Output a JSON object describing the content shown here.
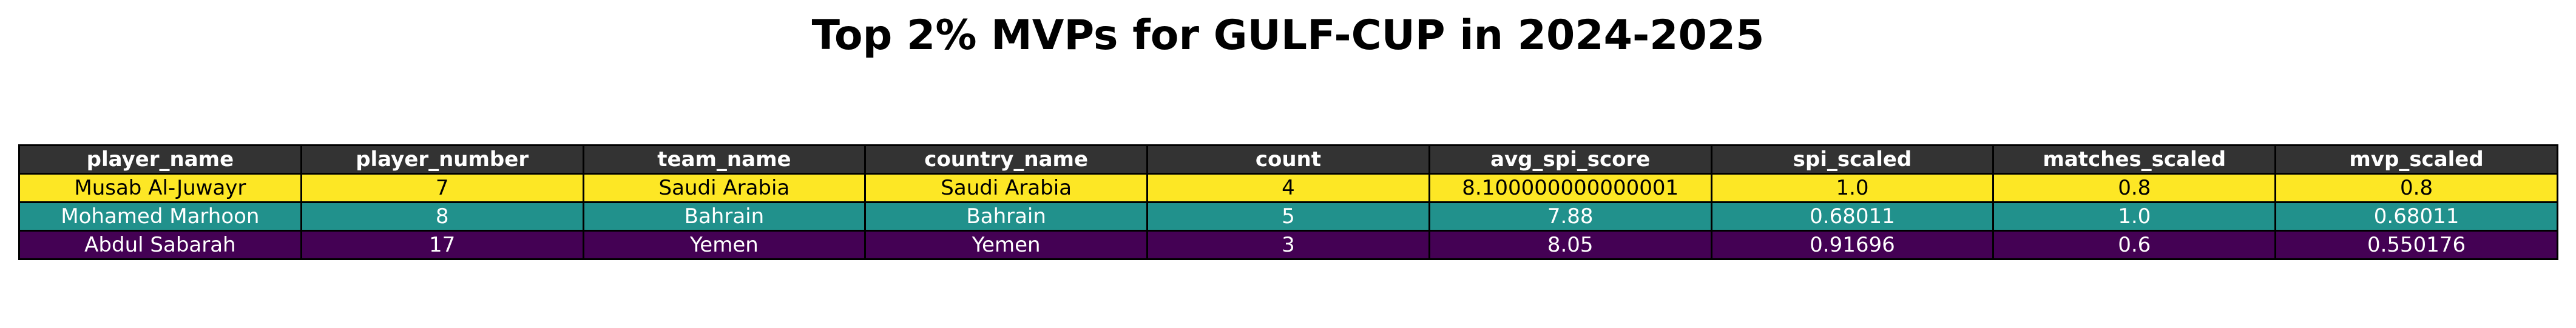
{
  "chart_data": {
    "type": "table",
    "title": "Top 2% MVPs for GULF-CUP in 2024-2025",
    "columns": [
      "player_name",
      "player_number",
      "team_name",
      "country_name",
      "count",
      "avg_spi_score",
      "spi_scaled",
      "matches_scaled",
      "mvp_scaled"
    ],
    "rows": [
      [
        "Musab Al-Juwayr",
        "7",
        "Saudi Arabia",
        "Saudi Arabia",
        "4",
        "8.100000000000001",
        "1.0",
        "0.8",
        "0.8"
      ],
      [
        "Mohamed Marhoon",
        "8",
        "Bahrain",
        "Bahrain",
        "5",
        "7.88",
        "0.68011",
        "1.0",
        "0.68011"
      ],
      [
        "Abdul Sabarah",
        "17",
        "Yemen",
        "Yemen",
        "3",
        "8.05",
        "0.91696",
        "0.6",
        "0.550176"
      ]
    ],
    "row_colors": [
      "#fde725",
      "#21918c",
      "#440154"
    ],
    "row_text_colors": [
      "#000000",
      "#ffffff",
      "#ffffff"
    ],
    "header_color": "#333333",
    "header_text_color": "#ffffff"
  }
}
